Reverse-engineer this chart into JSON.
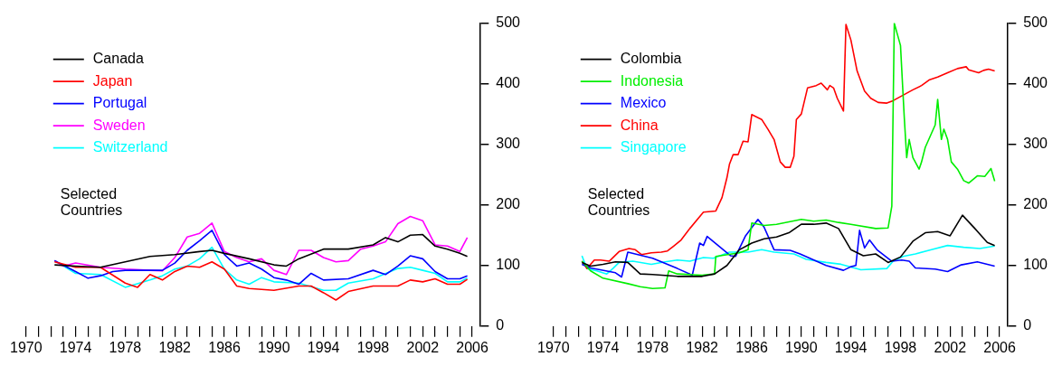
{
  "chart_data": [
    {
      "type": "line",
      "legend": "top left",
      "annotations": [
        "Selected Countries"
      ],
      "xlim": [
        1970,
        2006.6
      ],
      "ylim": [
        0,
        500
      ],
      "yticks": [
        0,
        100,
        200,
        300,
        400,
        500
      ],
      "xticks": [
        1970,
        {
          "value": 1971,
          "label": null
        },
        {
          "value": 1972,
          "label": null
        },
        {
          "value": 1973,
          "label": null
        },
        1974,
        {
          "value": 1975,
          "label": null
        },
        {
          "value": 1976,
          "label": null
        },
        {
          "value": 1977,
          "label": null
        },
        1978,
        {
          "value": 1979,
          "label": null
        },
        {
          "value": 1980,
          "label": null
        },
        {
          "value": 1981,
          "label": null
        },
        1982,
        {
          "value": 1983,
          "label": null
        },
        {
          "value": 1984,
          "label": null
        },
        {
          "value": 1985,
          "label": null
        },
        1986,
        {
          "value": 1987,
          "label": null
        },
        {
          "value": 1988,
          "label": null
        },
        {
          "value": 1989,
          "label": null
        },
        1990,
        {
          "value": 1991,
          "label": null
        },
        {
          "value": 1992,
          "label": null
        },
        {
          "value": 1993,
          "label": null
        },
        1994,
        {
          "value": 1995,
          "label": null
        },
        {
          "value": 1996,
          "label": null
        },
        {
          "value": 1997,
          "label": null
        },
        1998,
        {
          "value": 1999,
          "label": null
        },
        {
          "value": 2000,
          "label": null
        },
        {
          "value": 2001,
          "label": null
        },
        2002,
        {
          "value": 2003,
          "label": null
        },
        {
          "value": 2004,
          "label": null
        },
        {
          "value": 2005,
          "label": null
        },
        2006
      ],
      "series": [
        {
          "name": "Canada",
          "color": "#000000",
          "x": [
            1972.3,
            1974,
            1976,
            1978,
            1980,
            1982,
            1984,
            1985,
            1986,
            1988,
            1990,
            1991,
            1992,
            1994,
            1996,
            1998,
            1999,
            2000,
            2001,
            2002,
            2003,
            2004,
            2005,
            2005.6
          ],
          "values": [
            101,
            99,
            97,
            106,
            115,
            118,
            123,
            125,
            120,
            111,
            101,
            99,
            111,
            127,
            127,
            134,
            146,
            139,
            150,
            151,
            132,
            127,
            120,
            115
          ]
        },
        {
          "name": "Japan",
          "color": "#ff0000",
          "x": [
            1972.3,
            1974,
            1976,
            1978,
            1979,
            1980,
            1981,
            1982,
            1983,
            1984,
            1985,
            1986,
            1987,
            1988,
            1990,
            1992,
            1993,
            1994,
            1995,
            1996,
            1998,
            2000,
            2001,
            2002,
            2003,
            2004,
            2005,
            2005.6
          ],
          "values": [
            106,
            97,
            97,
            71,
            64,
            85,
            76,
            90,
            99,
            97,
            106,
            94,
            66,
            62,
            59,
            66,
            66,
            55,
            43,
            57,
            66,
            66,
            76,
            73,
            78,
            69,
            69,
            77
          ]
        },
        {
          "name": "Portugal",
          "color": "#0000ff",
          "x": [
            1972.3,
            1974,
            1975,
            1976,
            1977,
            1978,
            1980,
            1981,
            1982,
            1983,
            1984,
            1985,
            1986,
            1987,
            1988,
            1989,
            1990,
            1991,
            1992,
            1993,
            1994,
            1996,
            1998,
            1999,
            2000,
            2001,
            2002,
            2003,
            2004,
            2005,
            2005.6
          ],
          "values": [
            108,
            90,
            79,
            83,
            90,
            92,
            92,
            92,
            104,
            125,
            141,
            158,
            118,
            99,
            104,
            94,
            80,
            76,
            69,
            87,
            76,
            78,
            92,
            85,
            99,
            116,
            111,
            90,
            78,
            78,
            83
          ]
        },
        {
          "name": "Sweden",
          "color": "#ff00ff",
          "x": [
            1972.3,
            1973,
            1974,
            1976,
            1978,
            1980,
            1981,
            1982,
            1983,
            1984,
            1985,
            1986,
            1987,
            1988,
            1989,
            1990,
            1991,
            1992,
            1993,
            1994,
            1995,
            1996,
            1997,
            1998,
            1999,
            2000,
            2001,
            2002,
            2003,
            2004,
            2005,
            2005.6
          ],
          "values": [
            108,
            99,
            104,
            97,
            94,
            92,
            91,
            113,
            147,
            153,
            170,
            123,
            113,
            106,
            111,
            92,
            85,
            125,
            125,
            113,
            106,
            108,
            127,
            132,
            139,
            169,
            181,
            174,
            134,
            132,
            123,
            146
          ]
        },
        {
          "name": "Switzerland",
          "color": "#00ffff",
          "x": [
            1972.3,
            1974,
            1976,
            1978,
            1980,
            1981,
            1982,
            1983,
            1984,
            1985,
            1986,
            1987,
            1988,
            1989,
            1990,
            1992,
            1994,
            1995,
            1996,
            1998,
            2000,
            2001,
            2002,
            2003,
            2004,
            2005,
            2005.6
          ],
          "values": [
            108,
            87,
            85,
            64,
            76,
            83,
            94,
            99,
            111,
            130,
            94,
            76,
            69,
            80,
            73,
            71,
            59,
            59,
            71,
            78,
            95,
            97,
            92,
            87,
            73,
            73,
            79
          ]
        }
      ]
    },
    {
      "type": "line",
      "legend": "top left",
      "annotations": [
        "Selected Countries"
      ],
      "xlim": [
        1970,
        2006.6
      ],
      "ylim": [
        0,
        500
      ],
      "yticks": [
        0,
        100,
        200,
        300,
        400,
        500
      ],
      "xticks": [
        1970,
        {
          "value": 1971,
          "label": null
        },
        {
          "value": 1972,
          "label": null
        },
        {
          "value": 1973,
          "label": null
        },
        1974,
        {
          "value": 1975,
          "label": null
        },
        {
          "value": 1976,
          "label": null
        },
        {
          "value": 1977,
          "label": null
        },
        1978,
        {
          "value": 1979,
          "label": null
        },
        {
          "value": 1980,
          "label": null
        },
        {
          "value": 1981,
          "label": null
        },
        1982,
        {
          "value": 1983,
          "label": null
        },
        {
          "value": 1984,
          "label": null
        },
        {
          "value": 1985,
          "label": null
        },
        1986,
        {
          "value": 1987,
          "label": null
        },
        {
          "value": 1988,
          "label": null
        },
        {
          "value": 1989,
          "label": null
        },
        1990,
        {
          "value": 1991,
          "label": null
        },
        {
          "value": 1992,
          "label": null
        },
        {
          "value": 1993,
          "label": null
        },
        1994,
        {
          "value": 1995,
          "label": null
        },
        {
          "value": 1996,
          "label": null
        },
        {
          "value": 1997,
          "label": null
        },
        1998,
        {
          "value": 1999,
          "label": null
        },
        {
          "value": 2000,
          "label": null
        },
        {
          "value": 2001,
          "label": null
        },
        2002,
        {
          "value": 2003,
          "label": null
        },
        {
          "value": 2004,
          "label": null
        },
        {
          "value": 2005,
          "label": null
        },
        2006
      ],
      "series": [
        {
          "name": "Colombia",
          "color": "#000000",
          "x": [
            1972.3,
            1973,
            1974,
            1975,
            1976,
            1977,
            1978,
            1980,
            1982,
            1983,
            1984,
            1985,
            1986,
            1987,
            1988,
            1989,
            1990,
            1991,
            1992,
            1993,
            1994,
            1995,
            1996,
            1997,
            1998,
            1999,
            2000,
            2001,
            2002,
            2003,
            2004,
            2005,
            2005.6
          ],
          "values": [
            105,
            99,
            102,
            106,
            105,
            86,
            85,
            82,
            82,
            86,
            100,
            126,
            137,
            144,
            147,
            154,
            168,
            168,
            170,
            161,
            126,
            116,
            119,
            105,
            114,
            140,
            154,
            156,
            149,
            183,
            161,
            138,
            133
          ]
        },
        {
          "name": "Indonesia",
          "color": "#00ee00",
          "x": [
            1972.3,
            1973,
            1974,
            1976,
            1977,
            1978,
            1979,
            1979.3,
            1980,
            1982,
            1983,
            1983.1,
            1985,
            1985.7,
            1986,
            1987,
            1988,
            1990,
            1991,
            1992,
            1993,
            1994,
            1996,
            1997,
            1997.3,
            1997.5,
            1998,
            1998.3,
            1998.5,
            1998.7,
            1999,
            1999.5,
            1999.7,
            2000,
            2000.8,
            2001,
            2001.3,
            2001.5,
            2001.8,
            2002.1,
            2002.6,
            2003.1,
            2003.5,
            2004.2,
            2004.8,
            2005.3,
            2005.6
          ],
          "values": [
            107,
            91,
            79,
            70,
            65,
            62,
            63,
            91,
            86,
            84,
            86,
            115,
            121,
            126,
            170,
            166,
            168,
            176,
            173,
            175,
            171,
            168,
            161,
            162,
            198,
            500,
            463,
            346,
            278,
            308,
            278,
            259,
            271,
            295,
            332,
            374,
            308,
            325,
            308,
            271,
            259,
            240,
            236,
            248,
            247,
            260,
            239
          ]
        },
        {
          "name": "Mexico",
          "color": "#0000ff",
          "x": [
            1972.3,
            1973,
            1975,
            1975.5,
            1976,
            1978,
            1980,
            1981.2,
            1981.8,
            1982.1,
            1982.4,
            1984.3,
            1984.7,
            1985.5,
            1986.5,
            1987,
            1987.8,
            1989.1,
            1989.9,
            1992,
            1993.4,
            1994,
            1994.4,
            1994.7,
            1995.1,
            1995.5,
            1996.1,
            1997.3,
            1998.1,
            1998.7,
            1999.2,
            2000.8,
            2001.8,
            2002.9,
            2004.2,
            2005.6
          ],
          "values": [
            102,
            96,
            88,
            81,
            122,
            112,
            95,
            84,
            137,
            133,
            148,
            116,
            115,
            149,
            176,
            163,
            126,
            125,
            119,
            100,
            92,
            98,
            100,
            158,
            129,
            142,
            126,
            107,
            109,
            107,
            96,
            94,
            90,
            101,
            106,
            99
          ]
        },
        {
          "name": "China",
          "color": "#ff0000",
          "x": [
            1972.3,
            1972.7,
            1973.3,
            1973.8,
            1974.5,
            1975.3,
            1976.1,
            1976.6,
            1977.1,
            1977.9,
            1978.7,
            1979.2,
            1979.7,
            1980.3,
            1981,
            1982.1,
            1983.1,
            1983.6,
            1984,
            1984.2,
            1984.5,
            1984.9,
            1985.3,
            1985.7,
            1986,
            1986.8,
            1987.3,
            1987.8,
            1988.3,
            1988.7,
            1989.1,
            1989.4,
            1989.6,
            1990,
            1990.5,
            1991.2,
            1991.6,
            1992.1,
            1992.3,
            1992.6,
            1992.9,
            1993.4,
            1993.6,
            1994,
            1994.5,
            1995.1,
            1995.6,
            1996.2,
            1996.9,
            1997.4,
            1998.2,
            1999,
            1999.7,
            2000.3,
            2001,
            2001.8,
            2002.6,
            2003.3,
            2003.5,
            2004.3,
            2004.7,
            2005.1,
            2005.6
          ],
          "values": [
            107,
            95,
            109,
            109,
            107,
            123,
            128,
            126,
            118,
            121,
            122,
            124,
            132,
            142,
            161,
            188,
            190,
            212,
            245,
            267,
            283,
            283,
            305,
            304,
            349,
            341,
            325,
            308,
            271,
            262,
            262,
            280,
            341,
            350,
            393,
            397,
            401,
            390,
            397,
            393,
            376,
            355,
            498,
            472,
            421,
            388,
            376,
            369,
            368,
            372,
            381,
            390,
            397,
            406,
            411,
            418,
            425,
            428,
            423,
            418,
            422,
            424,
            421
          ]
        },
        {
          "name": "Singapore",
          "color": "#00ffff",
          "x": [
            1972.3,
            1972.7,
            1973.5,
            1974.3,
            1974.8,
            1975.3,
            1976.4,
            1977.9,
            1979,
            1980,
            1981,
            1982.1,
            1982.9,
            1984.2,
            1985.7,
            1986.8,
            1987.8,
            1989.4,
            1990.4,
            1992,
            1993.2,
            1994.8,
            1996.9,
            1997.4,
            1998.2,
            1999.2,
            2000.5,
            2001.8,
            2003.1,
            2004.4,
            2005.6
          ],
          "values": [
            116,
            95,
            91,
            86,
            95,
            105,
            107,
            102,
            106,
            109,
            107,
            113,
            112,
            122,
            122,
            126,
            122,
            119,
            110,
            105,
            102,
            93,
            95,
            107,
            115,
            119,
            126,
            133,
            130,
            128,
            132
          ]
        }
      ]
    }
  ]
}
